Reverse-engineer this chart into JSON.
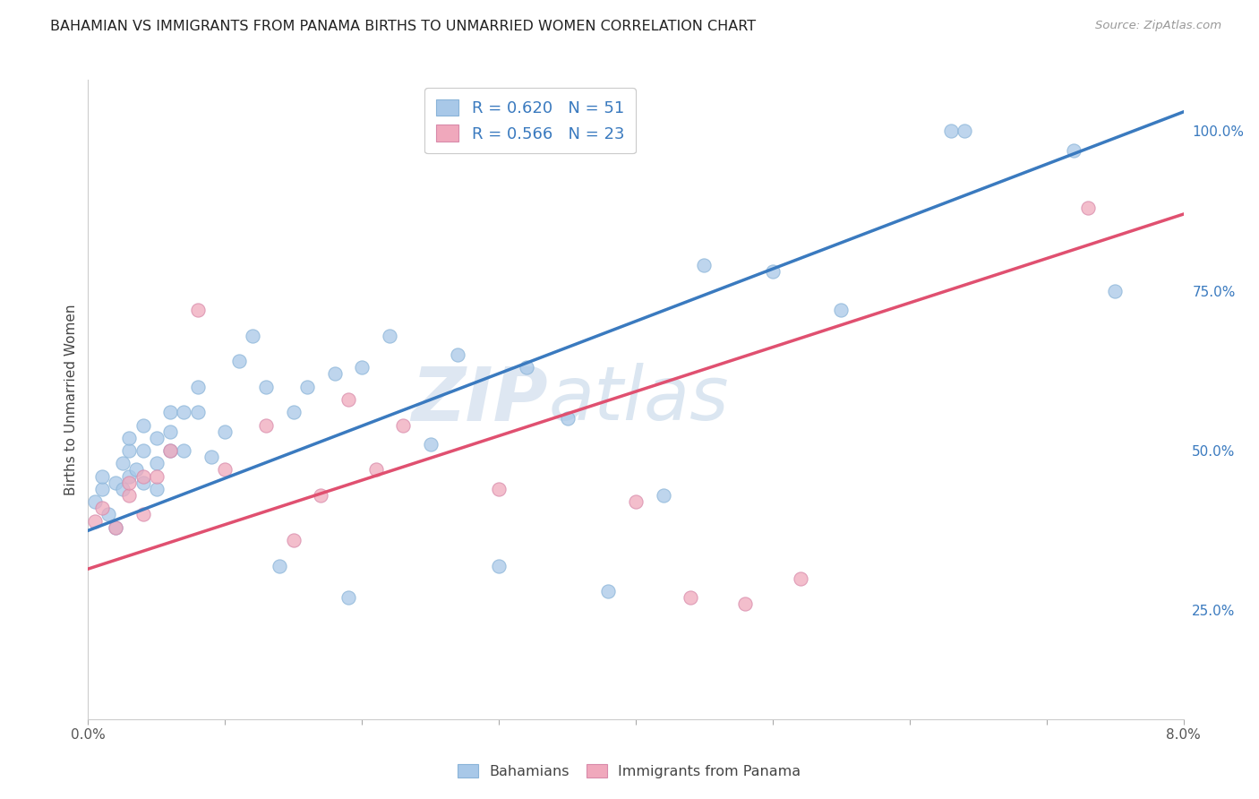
{
  "title": "BAHAMIAN VS IMMIGRANTS FROM PANAMA BIRTHS TO UNMARRIED WOMEN CORRELATION CHART",
  "source": "Source: ZipAtlas.com",
  "ylabel": "Births to Unmarried Women",
  "xlim": [
    0.0,
    0.08
  ],
  "ylim": [
    0.08,
    1.08
  ],
  "right_yticks": [
    0.25,
    0.5,
    0.75,
    1.0
  ],
  "right_yticklabels": [
    "25.0%",
    "50.0%",
    "75.0%",
    "100.0%"
  ],
  "xticks": [
    0.0,
    0.01,
    0.02,
    0.03,
    0.04,
    0.05,
    0.06,
    0.07,
    0.08
  ],
  "xticklabels": [
    "0.0%",
    "",
    "",
    "",
    "",
    "",
    "",
    "",
    "8.0%"
  ],
  "blue_color": "#a8c8e8",
  "pink_color": "#f0a8bc",
  "blue_line_color": "#3a7abf",
  "pink_line_color": "#e05070",
  "legend_r1": "R = 0.620",
  "legend_n1": "N = 51",
  "legend_r2": "R = 0.566",
  "legend_n2": "N = 23",
  "blue_scatter_x": [
    0.0005,
    0.001,
    0.001,
    0.0015,
    0.002,
    0.002,
    0.0025,
    0.0025,
    0.003,
    0.003,
    0.003,
    0.0035,
    0.004,
    0.004,
    0.004,
    0.005,
    0.005,
    0.005,
    0.006,
    0.006,
    0.006,
    0.007,
    0.007,
    0.008,
    0.008,
    0.009,
    0.01,
    0.011,
    0.012,
    0.013,
    0.014,
    0.015,
    0.016,
    0.018,
    0.019,
    0.02,
    0.022,
    0.025,
    0.027,
    0.03,
    0.032,
    0.035,
    0.038,
    0.042,
    0.045,
    0.05,
    0.055,
    0.063,
    0.064,
    0.072,
    0.075
  ],
  "blue_scatter_y": [
    0.42,
    0.44,
    0.46,
    0.4,
    0.38,
    0.45,
    0.44,
    0.48,
    0.46,
    0.5,
    0.52,
    0.47,
    0.45,
    0.5,
    0.54,
    0.44,
    0.48,
    0.52,
    0.5,
    0.53,
    0.56,
    0.5,
    0.56,
    0.56,
    0.6,
    0.49,
    0.53,
    0.64,
    0.68,
    0.6,
    0.32,
    0.56,
    0.6,
    0.62,
    0.27,
    0.63,
    0.68,
    0.51,
    0.65,
    0.32,
    0.63,
    0.55,
    0.28,
    0.43,
    0.79,
    0.78,
    0.72,
    1.0,
    1.0,
    0.97,
    0.75
  ],
  "pink_scatter_x": [
    0.0005,
    0.001,
    0.002,
    0.003,
    0.003,
    0.004,
    0.004,
    0.005,
    0.006,
    0.008,
    0.01,
    0.013,
    0.015,
    0.017,
    0.019,
    0.021,
    0.023,
    0.03,
    0.04,
    0.044,
    0.048,
    0.052,
    0.073
  ],
  "pink_scatter_y": [
    0.39,
    0.41,
    0.38,
    0.43,
    0.45,
    0.4,
    0.46,
    0.46,
    0.5,
    0.72,
    0.47,
    0.54,
    0.36,
    0.43,
    0.58,
    0.47,
    0.54,
    0.44,
    0.42,
    0.27,
    0.26,
    0.3,
    0.88
  ],
  "blue_trend": [
    0.375,
    1.03
  ],
  "pink_trend": [
    0.315,
    0.87
  ],
  "watermark": "ZIPatlas",
  "background_color": "#ffffff",
  "grid_color": "#dde8f0"
}
